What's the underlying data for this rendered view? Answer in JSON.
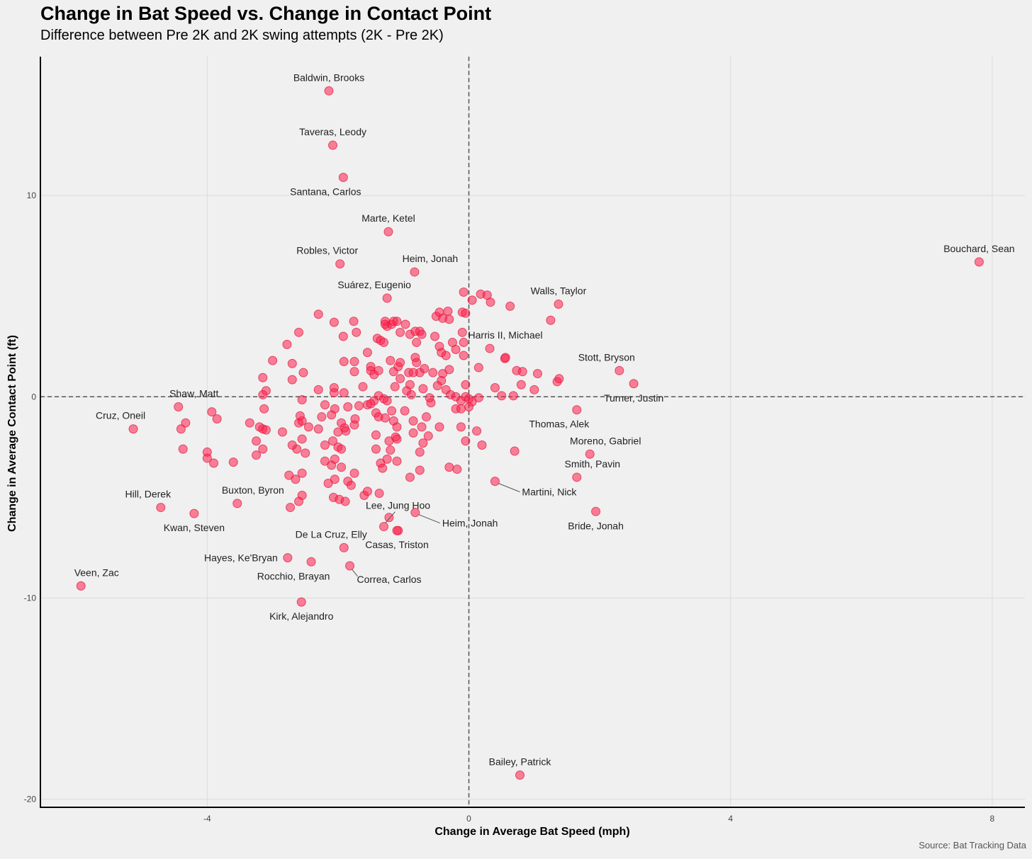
{
  "chart_data": {
    "type": "scatter",
    "title": "Change in Bat Speed vs. Change in Contact Point",
    "subtitle": "Difference between Pre 2K and 2K swing attempts (2K - Pre 2K)",
    "xlabel": "Change in Average Bat Speed (mph)",
    "ylabel": "Change in Average Contact Point (ft)",
    "caption": "Source: Bat Tracking Data",
    "xlim": [
      -6.55,
      8.5
    ],
    "ylim": [
      -20.4,
      16.9
    ],
    "x_ticks": [
      -4,
      0,
      4,
      8
    ],
    "x_tick_labels": [
      "-4",
      "0",
      "4",
      "8"
    ],
    "y_ticks": [
      -20,
      -10,
      0,
      10
    ],
    "y_tick_labels": [
      "-20",
      "-10",
      "0",
      "10"
    ],
    "reference_lines": {
      "x": 0,
      "y": 0,
      "style": "dashed"
    },
    "point_color": "#ff1f4b",
    "labeled_points": [
      {
        "name": "Baldwin, Brooks",
        "x": -2.14,
        "y": 15.2,
        "label_pos": "above"
      },
      {
        "name": "Taveras, Leody",
        "x": -2.08,
        "y": 12.5,
        "label_pos": "above"
      },
      {
        "name": "Santana, Carlos",
        "x": -1.92,
        "y": 10.9,
        "label_pos": "below-left"
      },
      {
        "name": "Marte, Ketel",
        "x": -1.23,
        "y": 8.2,
        "label_pos": "above"
      },
      {
        "name": "Robles, Victor",
        "x": -1.97,
        "y": 6.6,
        "label_pos": "above-left"
      },
      {
        "name": "Heim, Jonah",
        "x": -0.83,
        "y": 6.2,
        "label_pos": "above-right"
      },
      {
        "name": "Suárez, Eugenio",
        "x": -1.25,
        "y": 4.9,
        "label_pos": "above-left"
      },
      {
        "name": "Bouchard, Sean",
        "x": 7.8,
        "y": 6.7,
        "label_pos": "above"
      },
      {
        "name": "Walls, Taylor",
        "x": 1.37,
        "y": 4.6,
        "label_pos": "above"
      },
      {
        "name": "Harris II, Michael",
        "x": 0.32,
        "y": 2.4,
        "label_pos": "above-right"
      },
      {
        "name": "Stott, Bryson",
        "x": 2.3,
        "y": 1.3,
        "label_pos": "above-left"
      },
      {
        "name": "Turner, Justin",
        "x": 2.52,
        "y": 0.65,
        "label_pos": "below"
      },
      {
        "name": "Shaw, Matt",
        "x": -4.44,
        "y": -0.5,
        "label_pos": "above-right"
      },
      {
        "name": "Cruz, Oneil",
        "x": -5.13,
        "y": -1.6,
        "label_pos": "above-left"
      },
      {
        "name": "Thomas, Alek",
        "x": 1.65,
        "y": -0.65,
        "label_pos": "below-left"
      },
      {
        "name": "Moreno, Gabriel",
        "x": 1.85,
        "y": -2.85,
        "label_pos": "above-right"
      },
      {
        "name": "Smith, Pavin",
        "x": 1.65,
        "y": -4.0,
        "label_pos": "above-right"
      },
      {
        "name": "Martini, Nick",
        "x": 0.4,
        "y": -4.2,
        "label_pos": "leader-right"
      },
      {
        "name": "Bride, Jonah",
        "x": 1.94,
        "y": -5.7,
        "label_pos": "below"
      },
      {
        "name": "Heim, Jonah",
        "x": -0.82,
        "y": -5.75,
        "label_pos": "leader-right"
      },
      {
        "name": "Lee, Jung Hoo",
        "x": -1.3,
        "y": -6.45,
        "label_pos": "leader-above"
      },
      {
        "name": "Casas, Triston",
        "x": -1.1,
        "y": -6.65,
        "label_pos": "below"
      },
      {
        "name": "Hill, Derek",
        "x": -4.71,
        "y": -5.5,
        "label_pos": "above-left"
      },
      {
        "name": "Kwan, Steven",
        "x": -4.2,
        "y": -5.8,
        "label_pos": "below"
      },
      {
        "name": "Buxton, Byron",
        "x": -3.54,
        "y": -5.3,
        "label_pos": "above-right"
      },
      {
        "name": "De La Cruz, Elly",
        "x": -1.91,
        "y": -7.5,
        "label_pos": "above-left"
      },
      {
        "name": "Hayes, Ke'Bryan",
        "x": -2.77,
        "y": -8.0,
        "label_pos": "left"
      },
      {
        "name": "Rocchio, Brayan",
        "x": -2.41,
        "y": -8.2,
        "label_pos": "below-left"
      },
      {
        "name": "Correa, Carlos",
        "x": -1.82,
        "y": -8.4,
        "label_pos": "leader-below"
      },
      {
        "name": "Veen, Zac",
        "x": -5.93,
        "y": -9.4,
        "label_pos": "above-right"
      },
      {
        "name": "Kirk, Alejandro",
        "x": -2.56,
        "y": -10.2,
        "label_pos": "below"
      },
      {
        "name": "Bailey, Patrick",
        "x": 0.78,
        "y": -18.8,
        "label_pos": "above"
      }
    ],
    "unlabeled_points": [
      [
        -2.3,
        4.1
      ],
      [
        -2.06,
        3.7
      ],
      [
        -1.76,
        3.75
      ],
      [
        -1.72,
        3.2
      ],
      [
        -1.92,
        3.0
      ],
      [
        -2.6,
        3.2
      ],
      [
        -2.78,
        2.6
      ],
      [
        -3.0,
        1.8
      ],
      [
        -3.15,
        0.95
      ],
      [
        -3.1,
        0.3
      ],
      [
        -3.15,
        0.1
      ],
      [
        -3.13,
        -0.6
      ],
      [
        -2.7,
        1.65
      ],
      [
        -2.53,
        1.2
      ],
      [
        -2.7,
        0.85
      ],
      [
        -2.3,
        0.35
      ],
      [
        -1.91,
        1.75
      ],
      [
        -1.75,
        1.75
      ],
      [
        -1.75,
        1.25
      ],
      [
        -2.06,
        0.45
      ],
      [
        -2.06,
        0.2
      ],
      [
        -1.91,
        0.2
      ],
      [
        -2.1,
        -0.9
      ],
      [
        -2.2,
        -0.4
      ],
      [
        -2.05,
        -0.6
      ],
      [
        -1.85,
        -0.5
      ],
      [
        -1.68,
        -0.45
      ],
      [
        -1.55,
        -0.4
      ],
      [
        -2.25,
        -1.0
      ],
      [
        -2.3,
        -1.6
      ],
      [
        -1.95,
        -1.3
      ],
      [
        -1.9,
        -1.55
      ],
      [
        -1.88,
        -1.7
      ],
      [
        -1.75,
        -1.4
      ],
      [
        -1.74,
        -1.1
      ],
      [
        -2.0,
        -1.75
      ],
      [
        -2.0,
        -2.5
      ],
      [
        -1.95,
        -2.6
      ],
      [
        -2.2,
        -2.4
      ],
      [
        -2.08,
        -2.2
      ],
      [
        -2.2,
        -3.2
      ],
      [
        -2.1,
        -3.4
      ],
      [
        -2.05,
        -3.1
      ],
      [
        -1.95,
        -3.5
      ],
      [
        -2.05,
        -4.1
      ],
      [
        -2.15,
        -4.3
      ],
      [
        -1.85,
        -4.2
      ],
      [
        -1.8,
        -4.4
      ],
      [
        -1.75,
        -3.8
      ],
      [
        -2.07,
        -5.0
      ],
      [
        -1.98,
        -5.1
      ],
      [
        -1.89,
        -5.2
      ],
      [
        -1.6,
        -4.9
      ],
      [
        -1.55,
        -4.7
      ],
      [
        -1.37,
        -4.8
      ],
      [
        -2.63,
        -2.6
      ],
      [
        -2.7,
        -2.4
      ],
      [
        -2.55,
        -2.1
      ],
      [
        -2.5,
        -2.8
      ],
      [
        -2.45,
        -1.5
      ],
      [
        -2.6,
        -1.3
      ],
      [
        -2.55,
        -1.2
      ],
      [
        -2.58,
        -0.95
      ],
      [
        -2.55,
        -0.15
      ],
      [
        -2.85,
        -1.75
      ],
      [
        -2.75,
        -3.9
      ],
      [
        -2.55,
        -3.8
      ],
      [
        -2.65,
        -4.1
      ],
      [
        -2.55,
        -4.9
      ],
      [
        -2.6,
        -5.2
      ],
      [
        -2.73,
        -5.5
      ],
      [
        -3.25,
        -2.2
      ],
      [
        -3.25,
        -2.9
      ],
      [
        -3.2,
        -1.5
      ],
      [
        -3.15,
        -1.6
      ],
      [
        -3.1,
        -1.65
      ],
      [
        -3.35,
        -1.3
      ],
      [
        -3.15,
        -2.6
      ],
      [
        -3.6,
        -3.25
      ],
      [
        -3.85,
        -1.1
      ],
      [
        -3.93,
        -0.75
      ],
      [
        -4.0,
        -2.75
      ],
      [
        -4.0,
        -3.05
      ],
      [
        -3.9,
        -3.3
      ],
      [
        -4.33,
        -1.3
      ],
      [
        -4.4,
        -1.6
      ],
      [
        -4.37,
        -2.6
      ],
      [
        -1.62,
        0.5
      ],
      [
        -1.55,
        2.2
      ],
      [
        -1.5,
        1.5
      ],
      [
        -1.5,
        1.3
      ],
      [
        -1.45,
        1.1
      ],
      [
        -1.38,
        1.3
      ],
      [
        -1.4,
        2.9
      ],
      [
        -1.35,
        2.8
      ],
      [
        -1.38,
        0.05
      ],
      [
        -1.3,
        -0.1
      ],
      [
        -1.45,
        -0.2
      ],
      [
        -1.5,
        -0.35
      ],
      [
        -1.42,
        -0.8
      ],
      [
        -1.38,
        -1.0
      ],
      [
        -1.28,
        -1.05
      ],
      [
        -1.42,
        -1.9
      ],
      [
        -1.42,
        -2.6
      ],
      [
        -1.22,
        -2.2
      ],
      [
        -1.2,
        -2.65
      ],
      [
        -1.25,
        -3.1
      ],
      [
        -1.35,
        -3.3
      ],
      [
        -1.32,
        -3.55
      ],
      [
        -1.12,
        -2.0
      ],
      [
        -1.1,
        -2.1
      ],
      [
        -1.1,
        -3.2
      ],
      [
        -1.3,
        2.7
      ],
      [
        -1.25,
        3.5
      ],
      [
        -1.28,
        3.75
      ],
      [
        -1.18,
        3.6
      ],
      [
        -1.15,
        3.75
      ],
      [
        -1.1,
        3.75
      ],
      [
        -1.05,
        3.2
      ],
      [
        -0.97,
        3.6
      ],
      [
        -0.9,
        3.1
      ],
      [
        -0.82,
        3.25
      ],
      [
        -0.8,
        2.7
      ],
      [
        -0.75,
        3.25
      ],
      [
        -0.72,
        3.1
      ],
      [
        -1.2,
        1.8
      ],
      [
        -1.15,
        1.25
      ],
      [
        -1.08,
        1.5
      ],
      [
        -1.05,
        1.7
      ],
      [
        -1.13,
        0.5
      ],
      [
        -0.95,
        0.3
      ],
      [
        -0.92,
        1.2
      ],
      [
        -0.82,
        1.95
      ],
      [
        -0.8,
        1.7
      ],
      [
        -1.25,
        -0.2
      ],
      [
        -1.18,
        -0.7
      ],
      [
        -1.15,
        -1.2
      ],
      [
        -1.1,
        -1.5
      ],
      [
        -0.85,
        -1.2
      ],
      [
        -0.98,
        -0.7
      ],
      [
        -0.88,
        0.1
      ],
      [
        -0.7,
        0.4
      ],
      [
        -0.75,
        1.2
      ],
      [
        -0.68,
        1.4
      ],
      [
        -0.55,
        1.2
      ],
      [
        -0.58,
        -0.3
      ],
      [
        -0.65,
        -1.0
      ],
      [
        -0.72,
        -1.5
      ],
      [
        -0.62,
        -1.95
      ],
      [
        -0.7,
        -2.3
      ],
      [
        -0.75,
        -2.75
      ],
      [
        -0.85,
        -1.8
      ],
      [
        -0.9,
        -4.0
      ],
      [
        -0.75,
        -3.65
      ],
      [
        -1.08,
        -6.65
      ],
      [
        -1.22,
        -6.0
      ],
      [
        -0.5,
        4.0
      ],
      [
        -0.45,
        4.2
      ],
      [
        -0.4,
        3.9
      ],
      [
        -0.32,
        4.25
      ],
      [
        -0.3,
        3.85
      ],
      [
        -0.52,
        3.0
      ],
      [
        -0.42,
        2.2
      ],
      [
        -0.35,
        2.05
      ],
      [
        -0.45,
        2.5
      ],
      [
        -0.2,
        2.35
      ],
      [
        -0.25,
        2.7
      ],
      [
        -0.4,
        1.15
      ],
      [
        -0.3,
        1.35
      ],
      [
        -0.42,
        0.8
      ],
      [
        -0.35,
        0.35
      ],
      [
        -0.28,
        0.1
      ],
      [
        -0.2,
        0.0
      ],
      [
        -0.12,
        -0.2
      ],
      [
        -0.2,
        -0.6
      ],
      [
        -0.45,
        -1.5
      ],
      [
        -0.3,
        -3.5
      ],
      [
        -0.18,
        -3.6
      ],
      [
        -0.12,
        -1.5
      ],
      [
        -0.08,
        5.2
      ],
      [
        -0.1,
        4.2
      ],
      [
        -0.05,
        4.15
      ],
      [
        0.05,
        4.8
      ],
      [
        0.18,
        5.1
      ],
      [
        0.28,
        5.05
      ],
      [
        0.33,
        4.7
      ],
      [
        -0.1,
        3.2
      ],
      [
        -0.08,
        2.7
      ],
      [
        -0.08,
        2.05
      ],
      [
        -0.05,
        0.6
      ],
      [
        -0.05,
        0.0
      ],
      [
        0.0,
        -0.1
      ],
      [
        0.05,
        -0.25
      ],
      [
        0.0,
        -0.5
      ],
      [
        0.15,
        -0.05
      ],
      [
        -0.12,
        -0.6
      ],
      [
        -0.05,
        -2.2
      ],
      [
        0.12,
        -1.7
      ],
      [
        0.2,
        -2.4
      ],
      [
        0.15,
        1.45
      ],
      [
        0.5,
        0.05
      ],
      [
        0.4,
        0.45
      ],
      [
        0.55,
        1.9
      ],
      [
        0.56,
        1.95
      ],
      [
        0.68,
        0.05
      ],
      [
        0.73,
        1.3
      ],
      [
        0.8,
        0.6
      ],
      [
        0.82,
        1.25
      ],
      [
        0.63,
        4.5
      ],
      [
        0.7,
        -2.7
      ],
      [
        1.05,
        1.15
      ],
      [
        1.25,
        3.8
      ],
      [
        1.35,
        0.75
      ],
      [
        1.38,
        0.9
      ],
      [
        1.0,
        0.35
      ],
      [
        -0.48,
        0.55
      ],
      [
        -0.85,
        1.2
      ],
      [
        -0.9,
        0.6
      ],
      [
        -1.28,
        3.6
      ],
      [
        -1.05,
        0.9
      ],
      [
        -0.6,
        -0.05
      ]
    ]
  }
}
